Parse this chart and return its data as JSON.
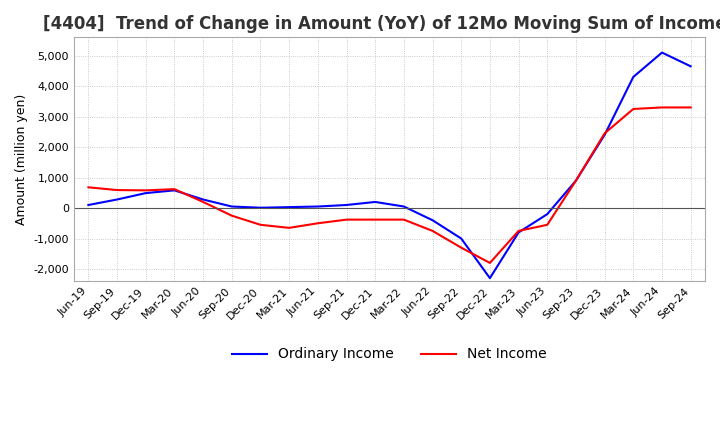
{
  "title": "[4404]  Trend of Change in Amount (YoY) of 12Mo Moving Sum of Incomes",
  "ylabel": "Amount (million yen)",
  "background_color": "#ffffff",
  "grid_color": "#bbbbbb",
  "x_labels": [
    "Jun-19",
    "Sep-19",
    "Dec-19",
    "Mar-20",
    "Jun-20",
    "Sep-20",
    "Dec-20",
    "Mar-21",
    "Jun-21",
    "Sep-21",
    "Dec-21",
    "Mar-22",
    "Jun-22",
    "Sep-22",
    "Dec-22",
    "Mar-23",
    "Jun-23",
    "Sep-23",
    "Dec-23",
    "Mar-24",
    "Jun-24",
    "Sep-24"
  ],
  "ordinary_income": [
    100,
    280,
    490,
    580,
    280,
    50,
    10,
    30,
    50,
    100,
    200,
    50,
    -400,
    -1000,
    -2300,
    -800,
    -200,
    900,
    2400,
    4300,
    5100,
    4650
  ],
  "net_income": [
    680,
    590,
    580,
    620,
    200,
    -250,
    -550,
    -650,
    -500,
    -380,
    -380,
    -380,
    -750,
    -1300,
    -1800,
    -750,
    -550,
    900,
    2450,
    3250,
    3300,
    3300
  ],
  "ordinary_income_color": "#0000ff",
  "net_income_color": "#ff0000",
  "ylim": [
    -2400,
    5600
  ],
  "yticks": [
    -2000,
    -1000,
    0,
    1000,
    2000,
    3000,
    4000,
    5000
  ],
  "line_width": 1.5,
  "title_fontsize": 12,
  "legend_fontsize": 10,
  "tick_fontsize": 8,
  "title_color": "#333333"
}
